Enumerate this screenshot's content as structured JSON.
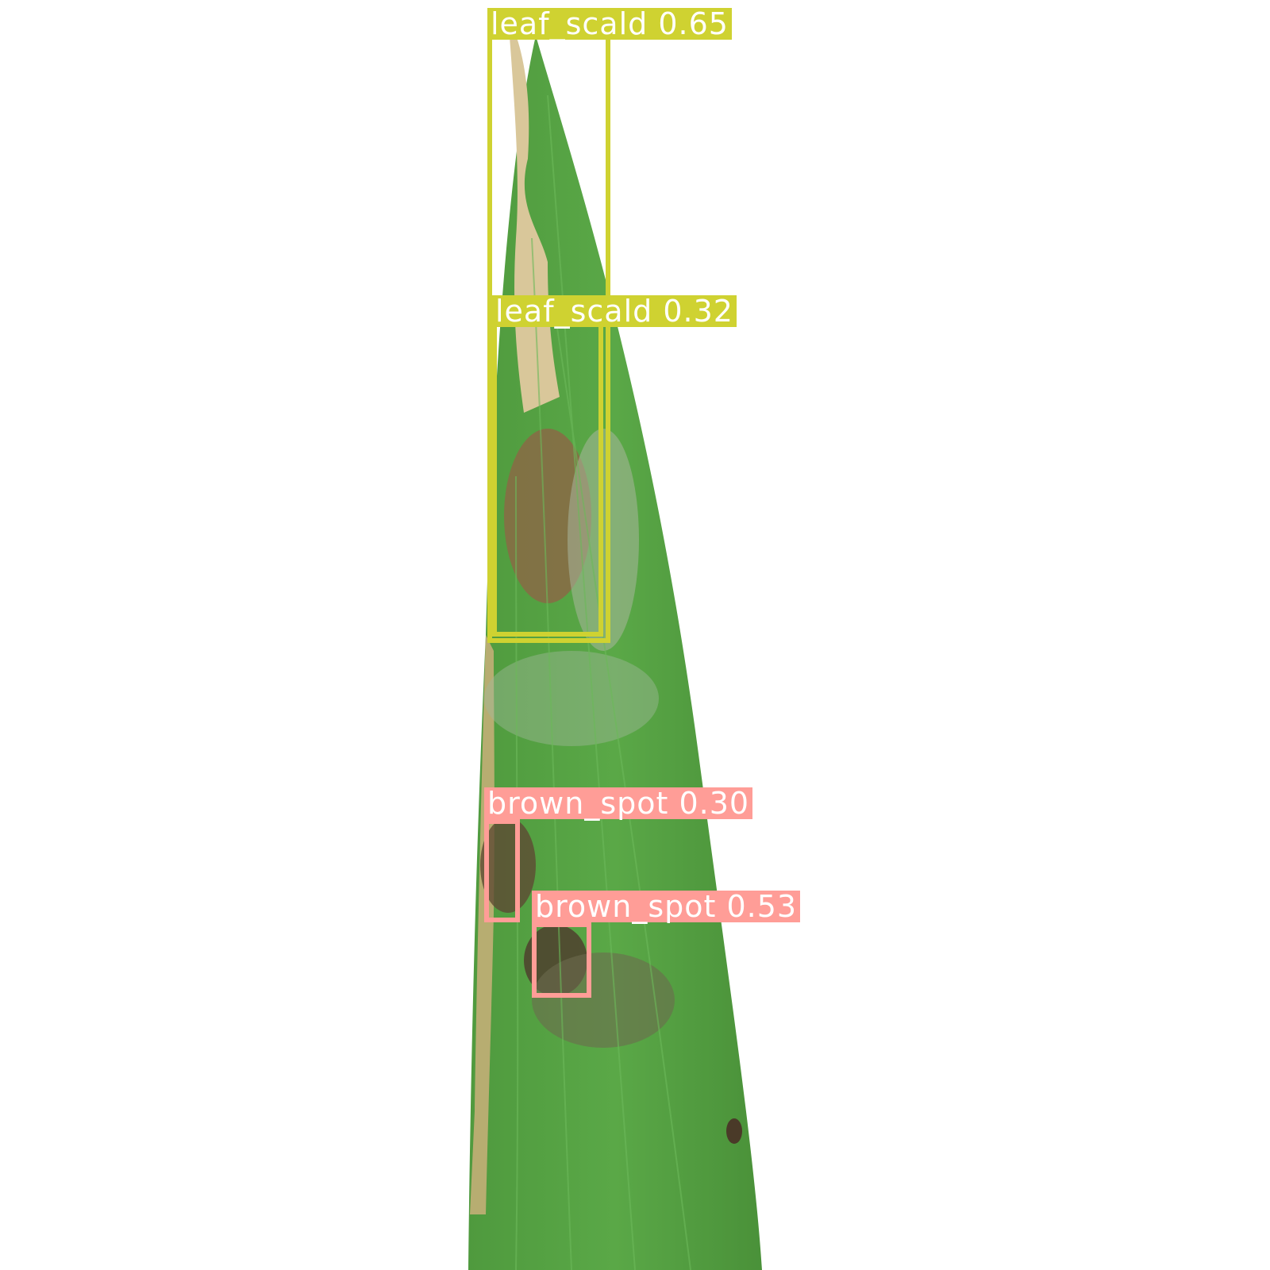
{
  "detections": [
    {
      "label": "leaf_scald 0.65",
      "class": "leaf_scald",
      "confidence": 0.65,
      "color": "#cfd231"
    },
    {
      "label": "leaf_scald 0.32",
      "class": "leaf_scald",
      "confidence": 0.32,
      "color": "#cfd231"
    },
    {
      "label": "brown_spot 0.30",
      "class": "brown_spot",
      "confidence": 0.3,
      "color": "#ff9d97"
    },
    {
      "label": "brown_spot 0.53",
      "class": "brown_spot",
      "confidence": 0.53,
      "color": "#ff9d97"
    }
  ],
  "colors": {
    "leaf_green": "#55a344",
    "lesion_brown": "#7a5a35",
    "dead_tissue": "#d9c79a",
    "background": "#ffffff"
  }
}
